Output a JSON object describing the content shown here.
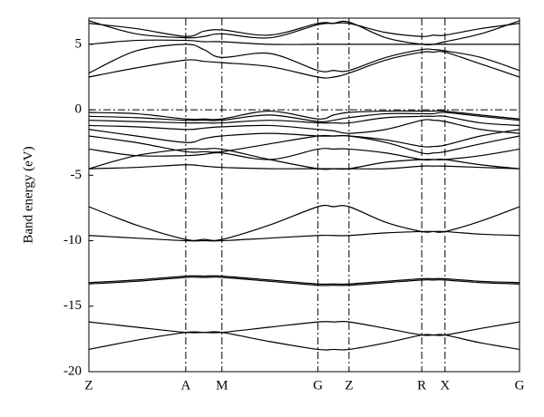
{
  "chart_data": {
    "type": "band_structure",
    "ylabel": "Band energy (eV)",
    "ylim": [
      -20,
      7
    ],
    "yticks": [
      -20,
      -15,
      -10,
      -5,
      0,
      5
    ],
    "xlim": [
      0,
      1
    ],
    "xticks": [
      {
        "value": 0,
        "label": "Z"
      },
      {
        "value": 0.225,
        "label": "A"
      },
      {
        "value": 0.309,
        "label": "M"
      },
      {
        "value": 0.532,
        "label": "G"
      },
      {
        "value": 0.604,
        "label": "Z"
      },
      {
        "value": 0.773,
        "label": "R"
      },
      {
        "value": 0.827,
        "label": "X"
      },
      {
        "value": 1,
        "label": "G"
      }
    ],
    "fermi_level": 0,
    "x": [
      0,
      0.11,
      0.225,
      0.267,
      0.309,
      0.42,
      0.532,
      0.568,
      0.604,
      0.69,
      0.773,
      0.8,
      0.827,
      0.91,
      1
    ],
    "series": [
      {
        "color": "#000000",
        "values": [
          2.5,
          3.2,
          3.8,
          3.7,
          3.6,
          3.3,
          2.5,
          2.5,
          2.8,
          3.8,
          4.4,
          4.4,
          4.4,
          3.5,
          2.5
        ]
      },
      {
        "color": "#000000",
        "values": [
          2.8,
          4.5,
          5.0,
          4.6,
          4.0,
          4.3,
          3.0,
          3.0,
          3.0,
          4.0,
          4.6,
          4.6,
          4.5,
          4.0,
          3.0
        ]
      },
      {
        "color": "#000000",
        "values": [
          5.0,
          5.3,
          5.3,
          5.2,
          5.2,
          5.0,
          5.0,
          5.0,
          5.0,
          5.0,
          5.0,
          5.0,
          5.0,
          5.0,
          5.0
        ]
      },
      {
        "color": "#000000",
        "values": [
          6.8,
          5.8,
          5.5,
          5.6,
          5.8,
          5.5,
          6.5,
          6.6,
          6.7,
          5.5,
          5.0,
          5.0,
          5.2,
          5.8,
          6.8
        ]
      },
      {
        "color": "#000000",
        "values": [
          6.6,
          6.2,
          5.6,
          6.0,
          6.1,
          5.7,
          6.6,
          6.6,
          6.6,
          5.9,
          5.6,
          5.7,
          5.7,
          6.2,
          6.6
        ]
      },
      {
        "color": "#000000",
        "values": [
          -0.2,
          -0.3,
          -0.7,
          -0.7,
          -0.7,
          -0.1,
          -0.7,
          -0.4,
          -0.2,
          -0.1,
          -0.1,
          -0.1,
          -0.1,
          -0.4,
          -0.7
        ]
      },
      {
        "color": "#000000",
        "values": [
          -0.5,
          -0.6,
          -0.8,
          -0.8,
          -0.8,
          -0.4,
          -0.9,
          -0.8,
          -0.6,
          -0.3,
          -0.3,
          -0.3,
          -0.2,
          -0.5,
          -0.8
        ]
      },
      {
        "color": "#000000",
        "values": [
          -0.8,
          -0.9,
          -1.0,
          -1.0,
          -1.0,
          -0.8,
          -1.0,
          -1.0,
          -1.0,
          -0.6,
          -0.5,
          -0.5,
          -0.5,
          -1.0,
          -1.2
        ]
      },
      {
        "color": "#000000",
        "values": [
          -1.2,
          -1.3,
          -1.5,
          -1.4,
          -1.3,
          -1.2,
          -1.5,
          -1.6,
          -1.8,
          -1.5,
          -0.8,
          -0.8,
          -0.9,
          -1.5,
          -1.8
        ]
      },
      {
        "color": "#000000",
        "values": [
          -1.5,
          -2.0,
          -2.5,
          -2.2,
          -2.0,
          -1.8,
          -2.0,
          -2.0,
          -2.0,
          -2.3,
          -2.8,
          -2.8,
          -2.7,
          -2.0,
          -1.5
        ]
      },
      {
        "color": "#000000",
        "values": [
          -2.0,
          -2.5,
          -3.2,
          -3.2,
          -3.2,
          -2.6,
          -2.0,
          -2.0,
          -2.0,
          -2.5,
          -3.3,
          -3.3,
          -3.2,
          -2.6,
          -2.0
        ]
      },
      {
        "color": "#000000",
        "values": [
          -3.0,
          -3.5,
          -3.5,
          -3.4,
          -3.3,
          -3.8,
          -3.0,
          -3.0,
          -3.0,
          -3.3,
          -3.8,
          -3.8,
          -3.8,
          -3.5,
          -3.0
        ]
      },
      {
        "color": "#000000",
        "values": [
          -4.5,
          -3.5,
          -3.0,
          -3.0,
          -3.0,
          -3.8,
          -4.5,
          -4.5,
          -4.5,
          -4.0,
          -3.8,
          -3.8,
          -3.8,
          -4.2,
          -4.5
        ]
      },
      {
        "color": "#000000",
        "values": [
          -4.5,
          -4.4,
          -4.2,
          -4.3,
          -4.4,
          -4.5,
          -4.5,
          -4.5,
          -4.5,
          -4.5,
          -4.3,
          -4.3,
          -4.3,
          -4.4,
          -4.5
        ]
      },
      {
        "color": "#000000",
        "values": [
          -7.4,
          -8.8,
          -9.9,
          -9.9,
          -9.9,
          -8.8,
          -7.4,
          -7.4,
          -7.4,
          -8.6,
          -9.3,
          -9.3,
          -9.3,
          -8.5,
          -7.4
        ]
      },
      {
        "color": "#000000",
        "values": [
          -9.6,
          -9.8,
          -10.0,
          -10.0,
          -10.0,
          -9.8,
          -9.6,
          -9.6,
          -9.6,
          -9.4,
          -9.3,
          -9.3,
          -9.3,
          -9.5,
          -9.6
        ]
      },
      {
        "color": "#000000",
        "values": [
          -13.2,
          -13.0,
          -12.7,
          -12.7,
          -12.7,
          -13.0,
          -13.3,
          -13.3,
          -13.3,
          -13.1,
          -12.9,
          -12.9,
          -12.9,
          -13.1,
          -13.2
        ]
      },
      {
        "color": "#000000",
        "values": [
          -13.3,
          -13.1,
          -12.8,
          -12.8,
          -12.8,
          -13.1,
          -13.4,
          -13.4,
          -13.4,
          -13.2,
          -13.0,
          -13.0,
          -13.0,
          -13.2,
          -13.3
        ]
      },
      {
        "color": "#000000",
        "values": [
          -16.2,
          -16.6,
          -17.0,
          -17.0,
          -17.0,
          -16.6,
          -16.2,
          -16.2,
          -16.2,
          -16.7,
          -17.2,
          -17.2,
          -17.2,
          -16.7,
          -16.2
        ]
      },
      {
        "color": "#000000",
        "values": [
          -18.3,
          -17.6,
          -17.0,
          -17.0,
          -17.0,
          -17.7,
          -18.3,
          -18.3,
          -18.3,
          -17.8,
          -17.2,
          -17.2,
          -17.2,
          -17.8,
          -18.3
        ]
      }
    ]
  }
}
